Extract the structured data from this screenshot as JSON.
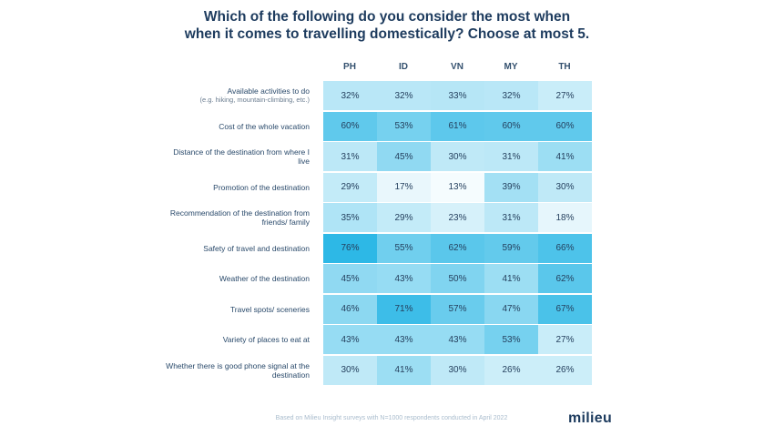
{
  "title_line1": "Which of the following do you consider the most when",
  "title_line2": "when it comes to travelling domestically? Choose at most 5.",
  "footer": "Based on Milieu Insight surveys with N=1000 respondents conducted in April 2022",
  "logo": "milieu",
  "colors": {
    "low": "#ffffff",
    "high": "#2db8e6",
    "text": "#1d3b5e"
  },
  "chart_data": {
    "type": "heatmap",
    "title": "Which of the following do you consider the most when when it comes to travelling domestically? Choose at most 5.",
    "columns": [
      "PH",
      "ID",
      "VN",
      "MY",
      "TH"
    ],
    "rows": [
      {
        "label": "Available activities to do",
        "sublabel": "(e.g. hiking, mountain-climbing, etc.)",
        "values": [
          32,
          32,
          33,
          32,
          27
        ]
      },
      {
        "label": "Cost of the whole vacation",
        "sublabel": "",
        "values": [
          60,
          53,
          61,
          60,
          60
        ]
      },
      {
        "label": "Distance of the destination from where I live",
        "sublabel": "",
        "values": [
          31,
          45,
          30,
          31,
          41
        ]
      },
      {
        "label": "Promotion of the destination",
        "sublabel": "",
        "values": [
          29,
          17,
          13,
          39,
          30
        ]
      },
      {
        "label": "Recommendation of the destination from friends/ family",
        "sublabel": "",
        "values": [
          35,
          29,
          23,
          31,
          18
        ]
      },
      {
        "label": "Safety of travel and destination",
        "sublabel": "",
        "values": [
          76,
          55,
          62,
          59,
          66
        ]
      },
      {
        "label": "Weather of the destination",
        "sublabel": "",
        "values": [
          45,
          43,
          50,
          41,
          62
        ]
      },
      {
        "label": "Travel spots/ sceneries",
        "sublabel": "",
        "values": [
          46,
          71,
          57,
          47,
          67
        ]
      },
      {
        "label": "Variety of places to eat at",
        "sublabel": "",
        "values": [
          43,
          43,
          43,
          53,
          27
        ]
      },
      {
        "label": "Whether there is good phone signal at the destination",
        "sublabel": "",
        "values": [
          30,
          41,
          30,
          26,
          26
        ]
      }
    ],
    "unit": "%"
  }
}
